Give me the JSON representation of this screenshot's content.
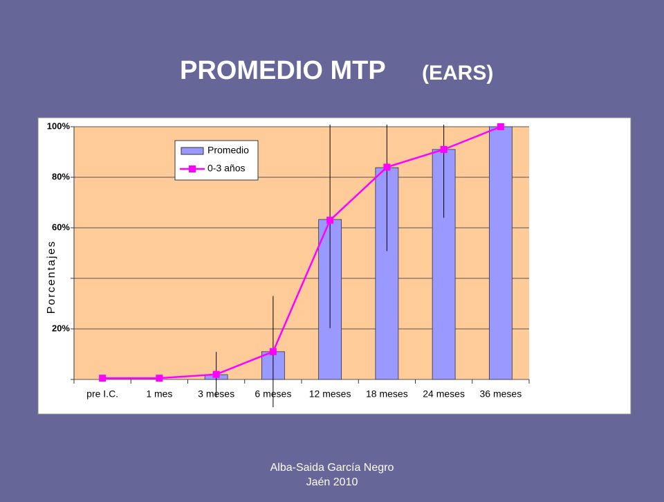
{
  "title": {
    "main": "PROMEDIO MTP",
    "sub": "(EARS)"
  },
  "chart_data": {
    "type": "bar",
    "categories": [
      "pre I.C.",
      "1 mes",
      "3 meses",
      "6 meses",
      "12 meses",
      "18 meses",
      "24 meses",
      "36 meses"
    ],
    "y_label": "Porcentajes",
    "series": [
      {
        "name": "Promedio",
        "type": "bar",
        "color": "#9999ff",
        "values": [
          0,
          0,
          1.9,
          11,
          63.3,
          83.8,
          91,
          100
        ],
        "errors": [
          null,
          null,
          9,
          22,
          43,
          33,
          27,
          null
        ]
      },
      {
        "name": "0-3 años",
        "type": "line",
        "color": "#ff00ff",
        "values": [
          0.5,
          0.5,
          2,
          11,
          63,
          84,
          91,
          100
        ]
      }
    ],
    "ylim": [
      0,
      100
    ],
    "yticks": [
      {
        "value": 0,
        "label": null
      },
      {
        "value": 20,
        "label": "20%"
      },
      {
        "value": 40,
        "label": null
      },
      {
        "value": 60,
        "label": "60%"
      },
      {
        "value": 80,
        "label": "80%"
      },
      {
        "value": 100,
        "label": "100%"
      }
    ],
    "grid": true
  },
  "footer": {
    "line1": "Alba-Saida García Negro",
    "line2": "Jaén 2010"
  }
}
